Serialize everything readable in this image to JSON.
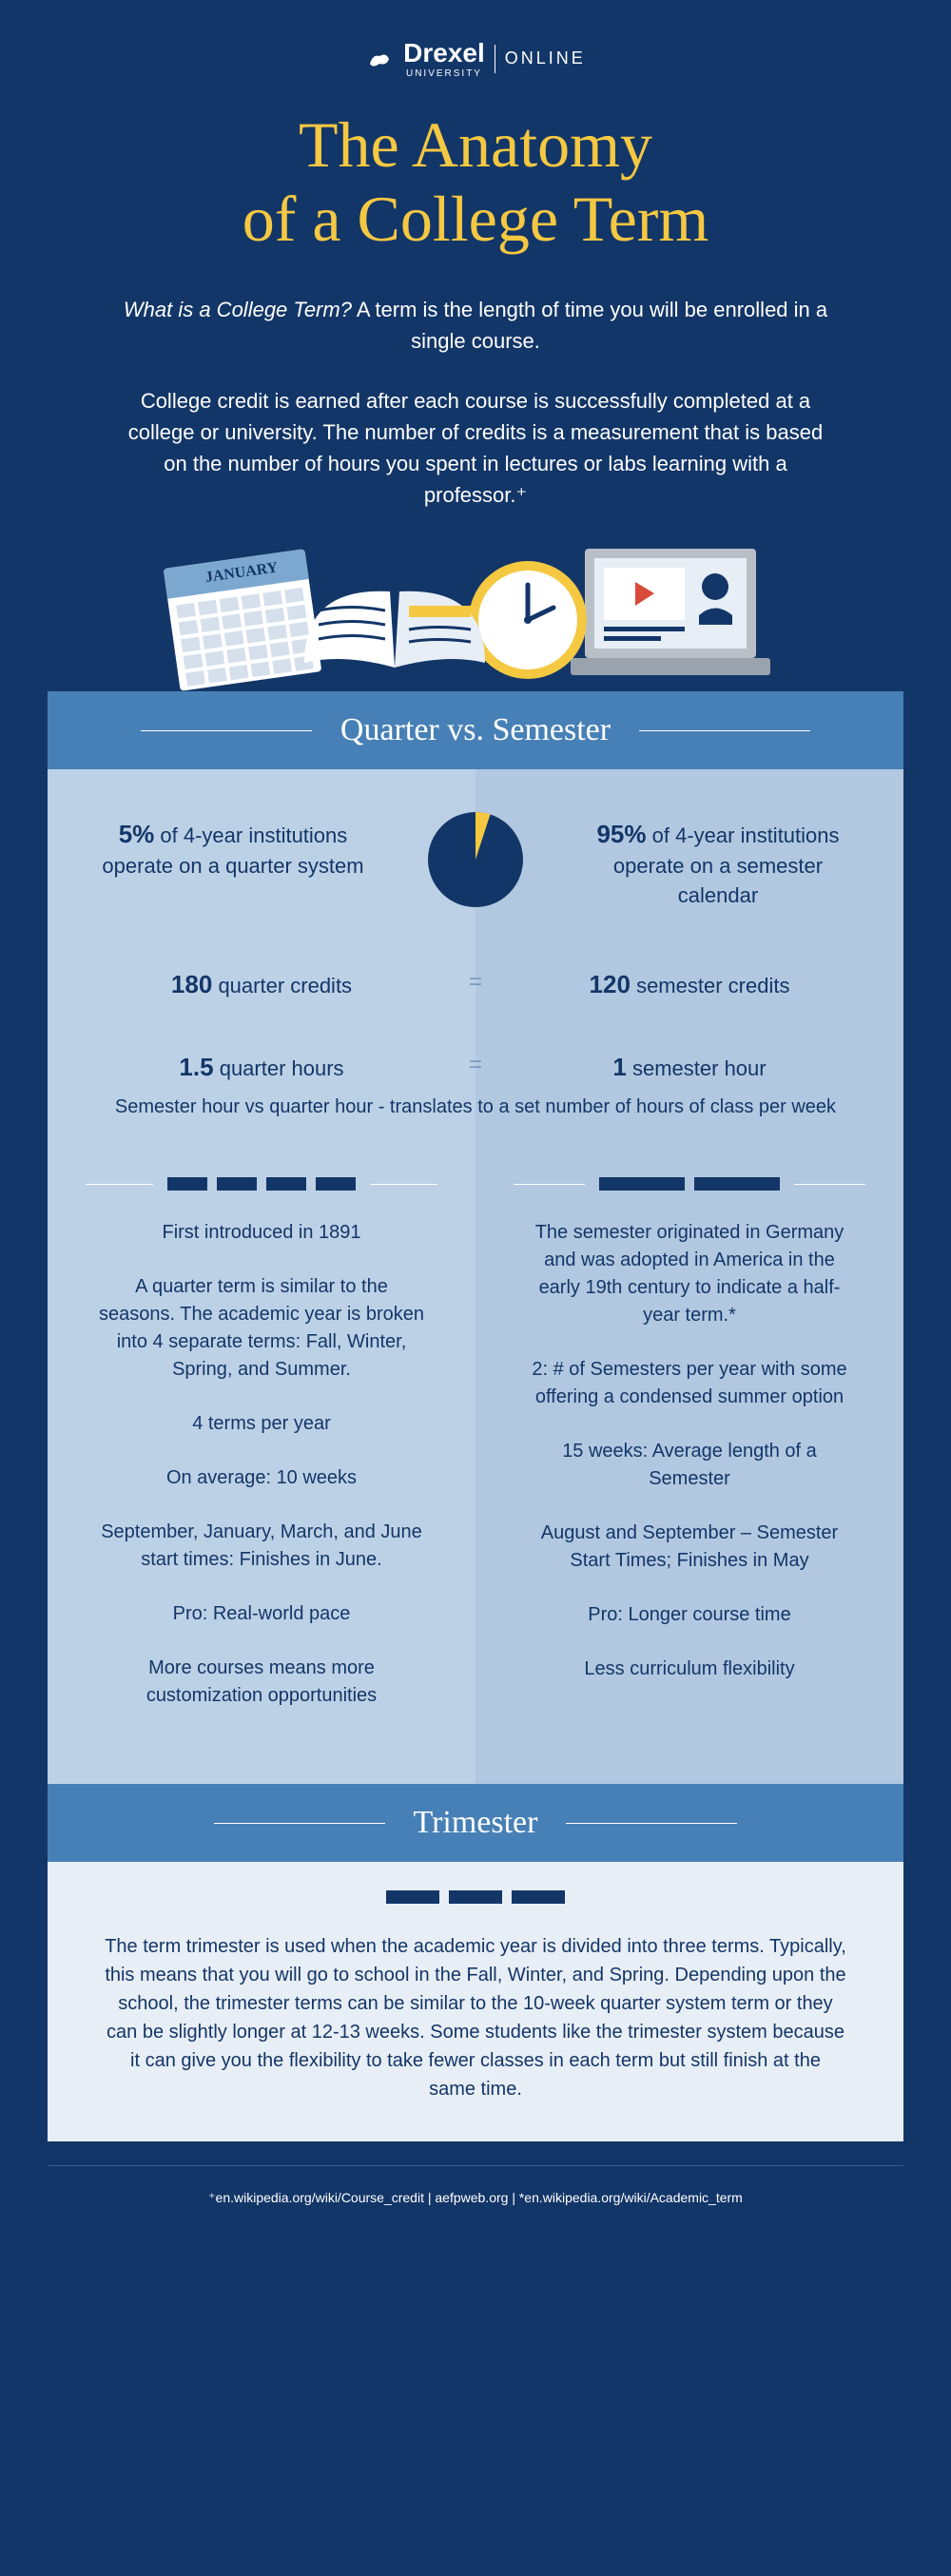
{
  "logo": {
    "main": "Drexel",
    "sub": "UNIVERSITY",
    "online": "ONLINE"
  },
  "title": "The Anatomy\nof a College Term",
  "intro_question": "What is a College Term?",
  "intro_answer": "A term is the length of time you will be enrolled in a single course.",
  "intro_body": "College credit is earned after each course is successfully completed at a college or university. The number of credits is a measurement that is based on the number of hours you spent in lectures or labs learning with a professor.⁺",
  "calendar_month": "JANUARY",
  "section1_title": "Quarter vs. Semester",
  "pie": {
    "quarter_pct": 5,
    "semester_pct": 95,
    "quarter_color": "#f5c842",
    "semester_color": "#133668"
  },
  "quarter": {
    "stat_pct": "5%",
    "stat_text": "of 4-year institutions operate on a quarter system",
    "credits_num": "180",
    "credits_label": "quarter credits",
    "hours_num": "1.5",
    "hours_label": "quarter hours",
    "facts": [
      "First introduced in 1891",
      "A quarter term is similar to the seasons. The academic year is broken into 4 separate terms: Fall, Winter, Spring, and Summer.",
      "4 terms per year",
      "On average: 10 weeks",
      "September, January, March, and June start times: Finishes in June.",
      "Pro: Real-world pace",
      "More courses means more customization opportunities"
    ]
  },
  "semester": {
    "stat_pct": "95%",
    "stat_text": "of 4-year institutions operate on a semester calendar",
    "credits_num": "120",
    "credits_label": "semester credits",
    "hours_num": "1",
    "hours_label": "semester hour",
    "facts": [
      "The semester originated in Germany and was adopted in America in the early 19th century to indicate a half-year term.*",
      "2: # of Semesters per year with some offering a condensed summer option",
      "15 weeks: Average length of a Semester",
      "August and September – Semester Start Times; Finishes in May",
      "Pro: Longer course time",
      "Less curriculum flexibility"
    ]
  },
  "hours_caption": "Semester hour vs quarter hour - translates to a set number of hours of class per week",
  "section2_title": "Trimester",
  "trimester_text": "The term trimester is used when the academic year is divided into three terms. Typically, this means that you will go to school in the Fall, Winter, and Spring. Depending upon the school, the trimester terms can be similar to the 10-week quarter system term or they can be slightly longer at 12-13 weeks. Some students like the trimester system because it can give you the flexibility to take fewer classes in each term but still finish at the same time.",
  "footer": "⁺en.wikipedia.org/wiki/Course_credit | aefpweb.org | *en.wikipedia.org/wiki/Academic_term",
  "colors": {
    "bg_dark": "#133668",
    "yellow": "#f5c842",
    "header_blue": "#4780b6",
    "col_left": "#bdd1e6",
    "col_right": "#b1c8e0",
    "trimester_bg": "#e8eef5"
  }
}
